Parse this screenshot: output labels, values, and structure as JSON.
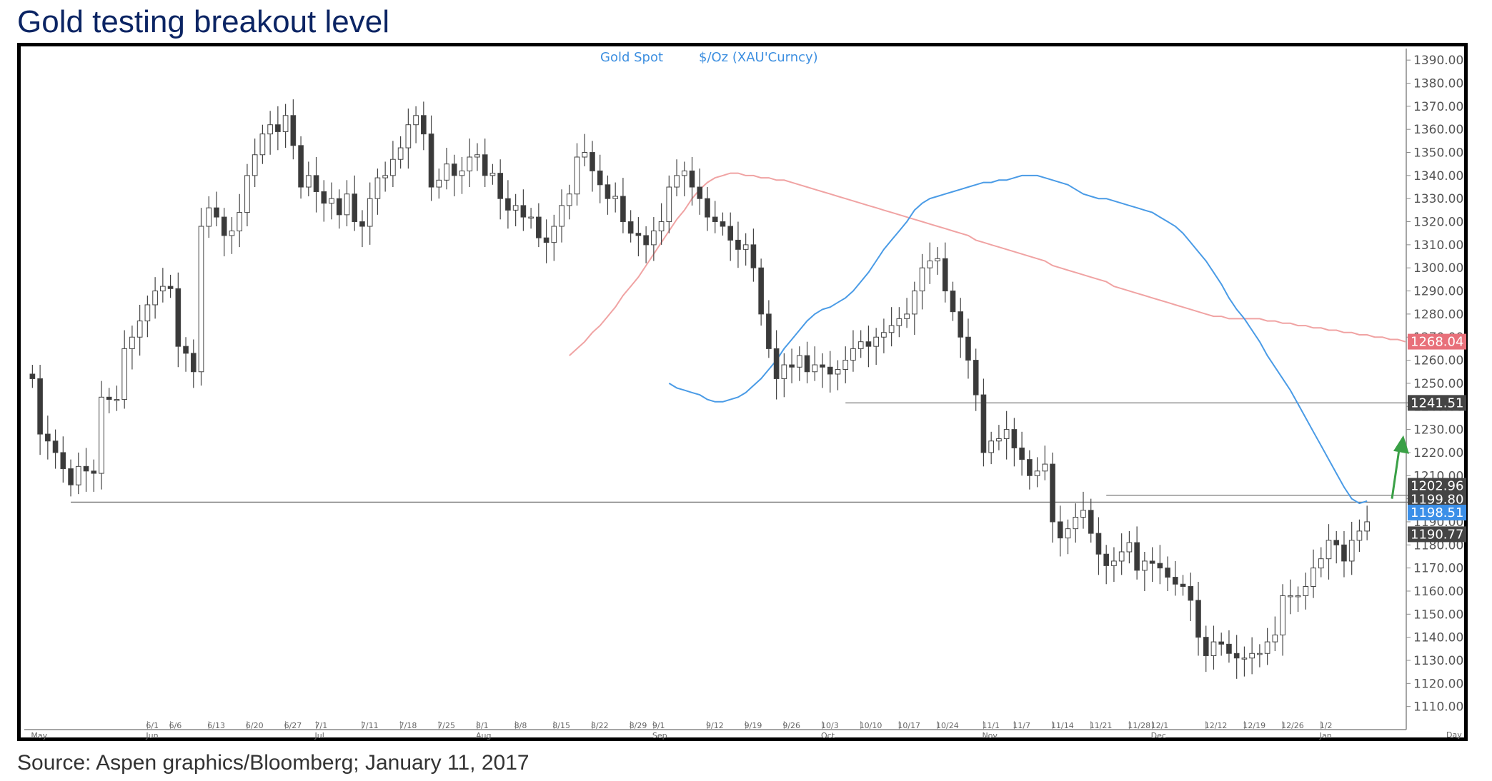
{
  "title": "Gold testing breakout level",
  "source": "Source: Aspen graphics/Bloomberg; January 11, 2017",
  "chart_data": {
    "type": "candlestick",
    "legend": {
      "instrument": "Gold  Spot",
      "units": "$/Oz  (XAU'Curncy)"
    },
    "x_unit_label": "Day",
    "ylim": [
      1100,
      1395
    ],
    "y_ticks": [
      "1110.00",
      "1120.00",
      "1130.00",
      "1140.00",
      "1150.00",
      "1160.00",
      "1170.00",
      "1180.00",
      "1190.00",
      "1200.00",
      "1210.00",
      "1220.00",
      "1230.00",
      "1240.00",
      "1250.00",
      "1260.00",
      "1270.00",
      "1280.00",
      "1290.00",
      "1300.00",
      "1310.00",
      "1320.00",
      "1330.00",
      "1340.00",
      "1350.00",
      "1360.00",
      "1370.00",
      "1380.00",
      "1390.00"
    ],
    "date_labels": [
      {
        "label": "6/1",
        "i": 15
      },
      {
        "label": "6/6",
        "i": 18
      },
      {
        "label": "6/13",
        "i": 23
      },
      {
        "label": "6/20",
        "i": 28
      },
      {
        "label": "6/27",
        "i": 33
      },
      {
        "label": "7/1",
        "i": 37
      },
      {
        "label": "7/11",
        "i": 43
      },
      {
        "label": "7/18",
        "i": 48
      },
      {
        "label": "7/25",
        "i": 53
      },
      {
        "label": "8/1",
        "i": 58
      },
      {
        "label": "8/8",
        "i": 63
      },
      {
        "label": "8/15",
        "i": 68
      },
      {
        "label": "8/22",
        "i": 73
      },
      {
        "label": "8/29",
        "i": 78
      },
      {
        "label": "9/1",
        "i": 81
      },
      {
        "label": "9/12",
        "i": 88
      },
      {
        "label": "9/19",
        "i": 93
      },
      {
        "label": "9/26",
        "i": 98
      },
      {
        "label": "10/3",
        "i": 103
      },
      {
        "label": "10/10",
        "i": 108
      },
      {
        "label": "10/17",
        "i": 113
      },
      {
        "label": "10/24",
        "i": 118
      },
      {
        "label": "11/1",
        "i": 124
      },
      {
        "label": "11/7",
        "i": 128
      },
      {
        "label": "11/14",
        "i": 133
      },
      {
        "label": "11/21",
        "i": 138
      },
      {
        "label": "11/28",
        "i": 143
      },
      {
        "label": "12/1",
        "i": 146
      },
      {
        "label": "12/12",
        "i": 153
      },
      {
        "label": "12/19",
        "i": 158
      },
      {
        "label": "12/26",
        "i": 163
      },
      {
        "label": "1/2",
        "i": 168
      }
    ],
    "month_labels": [
      {
        "label": "May",
        "i": 0
      },
      {
        "label": "Jun",
        "i": 15
      },
      {
        "label": "Jul",
        "i": 37
      },
      {
        "label": "Aug",
        "i": 58
      },
      {
        "label": "Sep",
        "i": 81
      },
      {
        "label": "Oct",
        "i": 103
      },
      {
        "label": "Nov",
        "i": 124
      },
      {
        "label": "Dec",
        "i": 146
      },
      {
        "label": "Jan",
        "i": 168
      }
    ],
    "close": [
      1252,
      1228,
      1225,
      1220,
      1213,
      1206,
      1214,
      1212,
      1211,
      1244,
      1243,
      1243,
      1265,
      1270,
      1277,
      1284,
      1290,
      1292,
      1291,
      1266,
      1263,
      1255,
      1318,
      1326,
      1322,
      1314,
      1316,
      1324,
      1340,
      1349,
      1358,
      1362,
      1359,
      1366,
      1353,
      1335,
      1340,
      1333,
      1328,
      1330,
      1323,
      1332,
      1320,
      1318,
      1330,
      1339,
      1340,
      1347,
      1352,
      1362,
      1366,
      1358,
      1335,
      1338,
      1345,
      1340,
      1342,
      1348,
      1349,
      1340,
      1341,
      1330,
      1325,
      1327,
      1322,
      1322,
      1313,
      1311,
      1318,
      1327,
      1332,
      1348,
      1350,
      1342,
      1336,
      1330,
      1331,
      1320,
      1315,
      1314,
      1310,
      1316,
      1320,
      1335,
      1340,
      1342,
      1335,
      1330,
      1322,
      1320,
      1318,
      1312,
      1308,
      1310,
      1300,
      1280,
      1265,
      1252,
      1258,
      1257,
      1262,
      1255,
      1258,
      1257,
      1254,
      1256,
      1260,
      1265,
      1268,
      1266,
      1270,
      1272,
      1275,
      1278,
      1280,
      1290,
      1300,
      1303,
      1304,
      1290,
      1281,
      1270,
      1260,
      1245,
      1220,
      1225,
      1226,
      1230,
      1222,
      1217,
      1210,
      1212,
      1215,
      1190,
      1183,
      1187,
      1192,
      1195,
      1185,
      1176,
      1171,
      1173,
      1177,
      1181,
      1169,
      1173,
      1172,
      1170,
      1166,
      1163,
      1162,
      1156,
      1140,
      1132,
      1138,
      1137,
      1133,
      1131,
      1131,
      1133,
      1133,
      1138,
      1141,
      1158,
      1158,
      1158,
      1162,
      1170,
      1174,
      1182,
      1180,
      1173,
      1182,
      1186,
      1190
    ],
    "ma50": [
      1250,
      1248,
      1247,
      1246,
      1245,
      1243,
      1242,
      1242,
      1243,
      1244,
      1246,
      1249,
      1252,
      1256,
      1260,
      1265,
      1269,
      1273,
      1277,
      1280,
      1282,
      1283,
      1285,
      1287,
      1290,
      1294,
      1298,
      1303,
      1308,
      1312,
      1316,
      1320,
      1325,
      1328,
      1330,
      1331,
      1332,
      1333,
      1334,
      1335,
      1336,
      1337,
      1337,
      1338,
      1338,
      1339,
      1340,
      1340,
      1340,
      1339,
      1338,
      1337,
      1336,
      1334,
      1332,
      1331,
      1330,
      1330,
      1329,
      1328,
      1327,
      1326,
      1325,
      1324,
      1322,
      1320,
      1318,
      1315,
      1311,
      1307,
      1303,
      1298,
      1293,
      1287,
      1282,
      1278,
      1273,
      1268,
      1262,
      1257,
      1252,
      1247,
      1241,
      1235,
      1229,
      1223,
      1217,
      1211,
      1205,
      1200,
      1198,
      1199
    ],
    "ma200": [
      1262,
      1265,
      1268,
      1272,
      1275,
      1279,
      1283,
      1288,
      1292,
      1296,
      1301,
      1306,
      1311,
      1316,
      1321,
      1325,
      1330,
      1334,
      1337,
      1339,
      1340,
      1341,
      1341,
      1340,
      1340,
      1339,
      1339,
      1338,
      1338,
      1337,
      1336,
      1335,
      1334,
      1333,
      1332,
      1331,
      1330,
      1329,
      1328,
      1327,
      1326,
      1325,
      1324,
      1323,
      1322,
      1321,
      1320,
      1319,
      1318,
      1317,
      1316,
      1315,
      1314,
      1312,
      1311,
      1310,
      1309,
      1308,
      1307,
      1306,
      1305,
      1304,
      1303,
      1301,
      1300,
      1299,
      1298,
      1297,
      1296,
      1295,
      1294,
      1292,
      1291,
      1290,
      1289,
      1288,
      1287,
      1286,
      1285,
      1284,
      1283,
      1282,
      1281,
      1280,
      1279,
      1279,
      1278,
      1278,
      1278,
      1278,
      1278,
      1277,
      1277,
      1276,
      1276,
      1275,
      1275,
      1274,
      1274,
      1273,
      1273,
      1272,
      1272,
      1271,
      1271,
      1270,
      1270,
      1269,
      1269,
      1268
    ],
    "ma200_start": 70,
    "horizontal_levels": [
      {
        "value": 1198.51,
        "from": 5,
        "to": 178
      },
      {
        "value": 1241.51,
        "from": 106,
        "to": 178
      },
      {
        "value": 1201.5,
        "from": 140,
        "to": 178
      }
    ],
    "price_tags": [
      {
        "label": "1268.04",
        "value": 1268.04,
        "color": "#e8707a"
      },
      {
        "label": "1241.51",
        "value": 1241.51,
        "color": "#444444"
      },
      {
        "label": "1202.96",
        "value": 1205.6,
        "color": "#444444"
      },
      {
        "label": "1199.80",
        "value": 1199.8,
        "color": "#444444"
      },
      {
        "label": "1198.51",
        "value": 1194.0,
        "color": "#3b8fe8"
      },
      {
        "label": "1190.77",
        "value": 1184.6,
        "color": "#444444"
      }
    ],
    "annotation": {
      "type": "arrow",
      "color": "#3aa046",
      "direction": "up"
    }
  }
}
